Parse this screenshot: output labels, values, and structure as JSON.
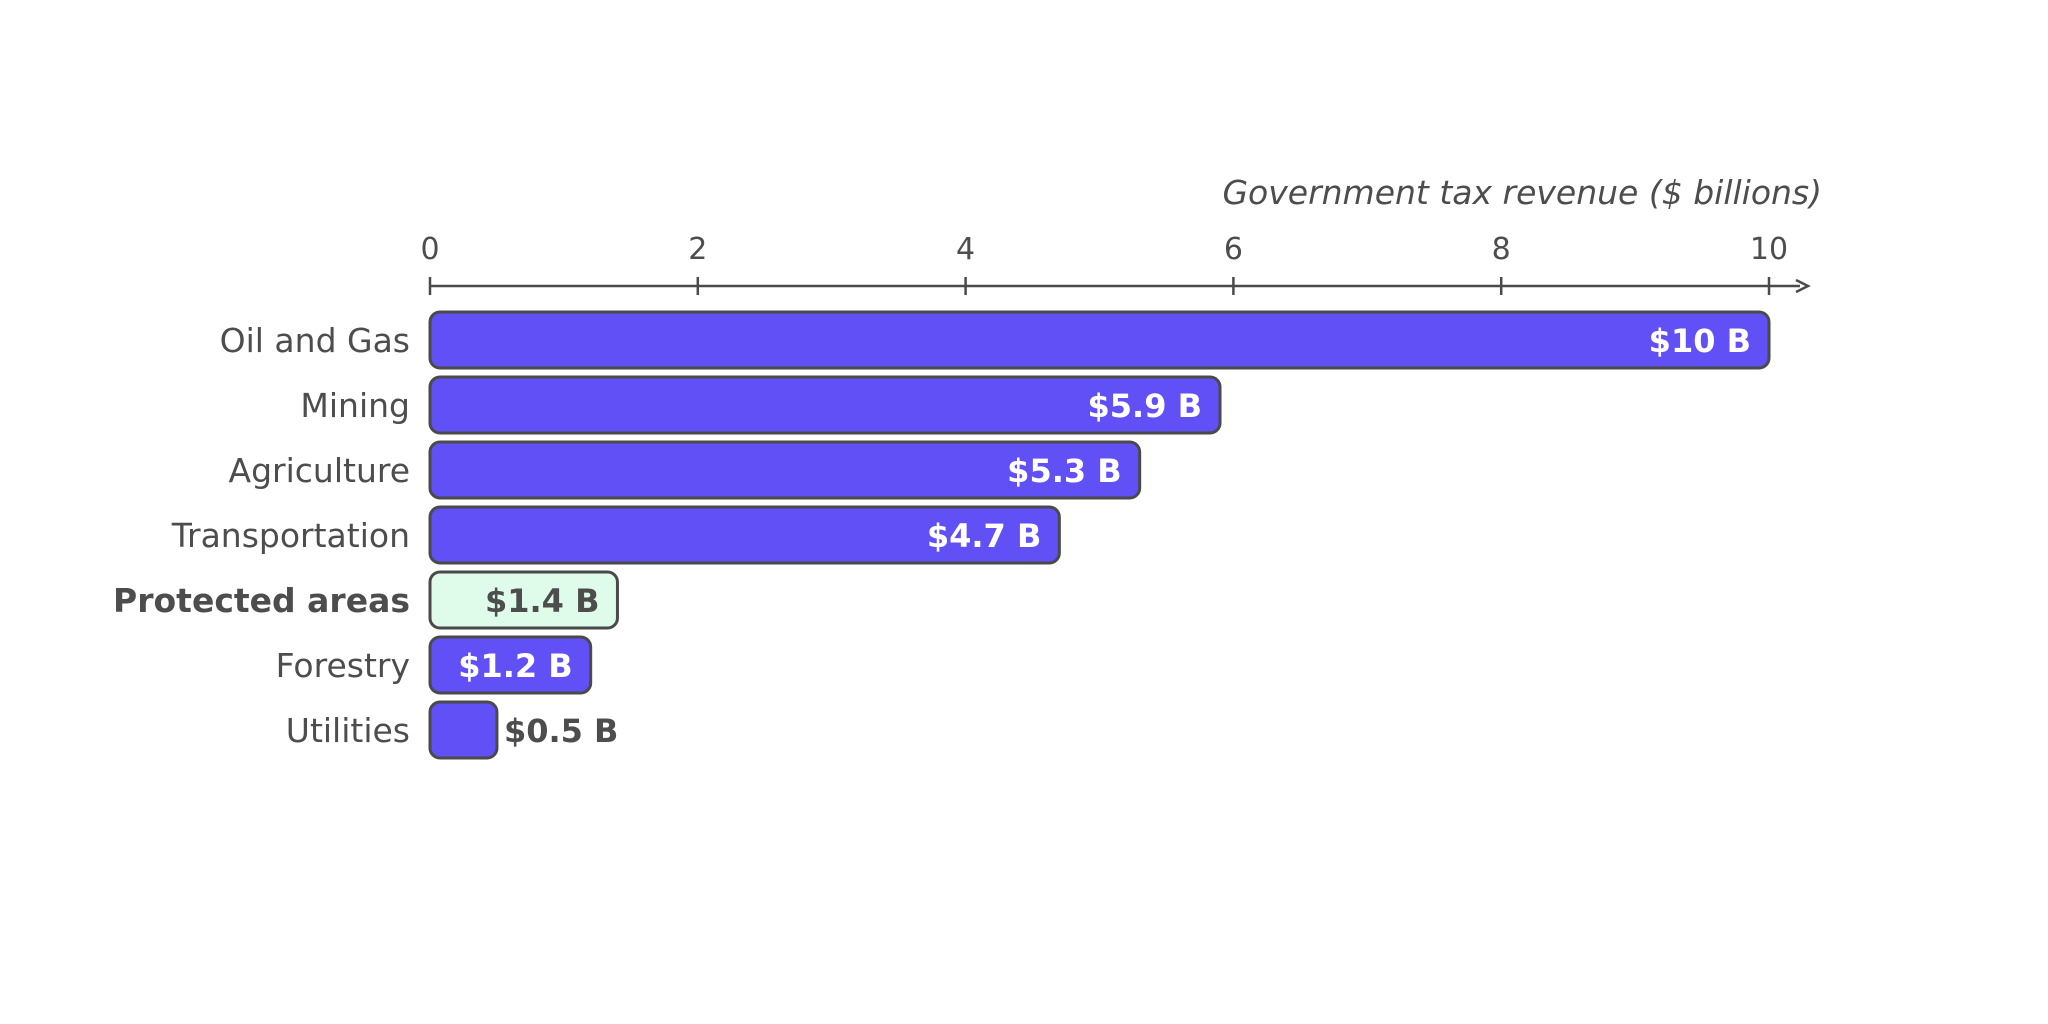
{
  "chart_data": {
    "type": "bar",
    "orientation": "horizontal",
    "xlabel": "Government tax revenue ($ billions)",
    "xlim": [
      0,
      10
    ],
    "xticks": [
      "0",
      "2",
      "4",
      "6",
      "8",
      "10"
    ],
    "categories": [
      "Oil and Gas",
      "Mining",
      "Agriculture",
      "Transportation",
      "Protected areas",
      "Forestry",
      "Utilities"
    ],
    "values": [
      10,
      5.9,
      5.3,
      4.7,
      1.4,
      1.2,
      0.5
    ],
    "value_labels": [
      "$10 B",
      "$5.9 B",
      "$5.3 B",
      "$4.7 B",
      "$1.4 B",
      "$1.2 B",
      "$0.5 B"
    ],
    "highlighted_category": "Protected areas",
    "grid": false,
    "colors": {
      "bar": "#6050f5",
      "highlight_bar": "#dffbe9",
      "bar_outline": "#4a4a4a",
      "text": "#4d4d4d",
      "label_inside": "#ffffff"
    }
  }
}
